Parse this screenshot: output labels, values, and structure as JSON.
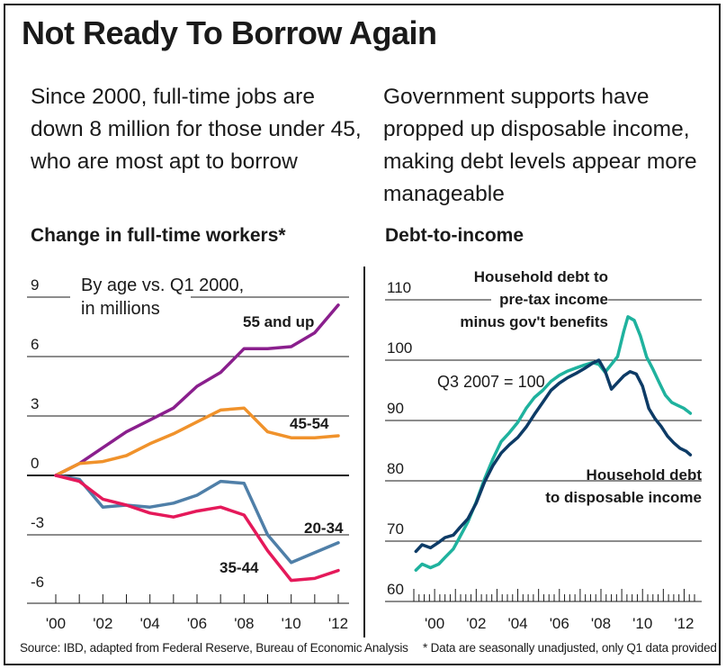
{
  "title": "Not Ready To Borrow Again",
  "intro_left": "Since 2000, full-time jobs are down 8 million for those under 45, who are most apt to borrow",
  "intro_right": "Government supports have propped up disposable income, making debt levels appear more manageable",
  "source": "Source: IBD, adapted from Federal Reserve, Bureau of Economic Analysis",
  "footnote": "* Data are seasonally unadjusted, only Q1 data provided",
  "colors": {
    "purple": "#8a1f8d",
    "orange": "#f0922b",
    "red": "#e5195a",
    "steel": "#4f7fa8",
    "teal": "#1fb29e",
    "navy": "#0d3b66"
  },
  "chart_data": [
    {
      "type": "line",
      "title": "Change in full-time workers*",
      "note_lines": [
        "By age vs. Q1 2000,",
        "in millions"
      ],
      "ylim": [
        -6,
        9
      ],
      "yticks": [
        9,
        6,
        3,
        0,
        -3,
        -6
      ],
      "x": [
        2000,
        2001,
        2002,
        2003,
        2004,
        2005,
        2006,
        2007,
        2008,
        2009,
        2010,
        2011,
        2012
      ],
      "xtick_labels": [
        "'00",
        "'02",
        "'04",
        "'06",
        "'08",
        "'10",
        "'12"
      ],
      "series": [
        {
          "name": "55 and up",
          "color_key": "purple",
          "values": [
            0,
            0.6,
            1.4,
            2.2,
            2.8,
            3.4,
            4.5,
            5.2,
            6.4,
            6.4,
            6.5,
            7.2,
            8.6
          ]
        },
        {
          "name": "45-54",
          "color_key": "orange",
          "values": [
            0,
            0.6,
            0.7,
            1.0,
            1.6,
            2.1,
            2.7,
            3.3,
            3.4,
            2.2,
            1.9,
            1.9,
            2.0
          ]
        },
        {
          "name": "20-34",
          "color_key": "steel",
          "values": [
            0,
            -0.2,
            -1.6,
            -1.5,
            -1.6,
            -1.4,
            -1.0,
            -0.3,
            -0.4,
            -3.0,
            -4.4,
            -3.9,
            -3.4
          ]
        },
        {
          "name": "35-44",
          "color_key": "red",
          "values": [
            0,
            -0.3,
            -1.2,
            -1.5,
            -1.9,
            -2.1,
            -1.8,
            -1.6,
            -2.0,
            -3.8,
            -5.3,
            -5.2,
            -4.8
          ]
        }
      ]
    },
    {
      "type": "line",
      "title": "Debt-to-income",
      "annotation": "Q3 2007 = 100",
      "ylim": [
        60,
        110
      ],
      "yticks": [
        110,
        100,
        90,
        80,
        70,
        60
      ],
      "xlim": [
        1999,
        2012.5
      ],
      "xtick_labels": [
        "'00",
        "'02",
        "'04",
        "'06",
        "'08",
        "'10",
        "'12"
      ],
      "series": [
        {
          "name": "Household debt to pre-tax income minus gov't benefits",
          "label_lines": [
            "Household debt to",
            "pre-tax income",
            "minus gov't benefits"
          ],
          "color_key": "teal",
          "x": [
            1999.1,
            1999.4,
            1999.8,
            2000.2,
            2000.5,
            2000.9,
            2001.2,
            2001.6,
            2002.0,
            2002.4,
            2002.8,
            2003.2,
            2003.6,
            2004.0,
            2004.4,
            2004.8,
            2005.2,
            2005.6,
            2006.0,
            2006.4,
            2006.8,
            2007.2,
            2007.6,
            2007.9,
            2008.2,
            2008.5,
            2008.8,
            2009.1,
            2009.3,
            2009.6,
            2009.9,
            2010.2,
            2010.5,
            2010.8,
            2011.1,
            2011.4,
            2011.7,
            2012.0,
            2012.3
          ],
          "values": [
            65.2,
            66.2,
            65.6,
            66.2,
            67.3,
            68.7,
            70.6,
            73.2,
            76.5,
            80.3,
            83.6,
            86.5,
            88.0,
            89.7,
            92.0,
            93.8,
            95.0,
            96.5,
            97.5,
            98.2,
            98.7,
            99.2,
            99.6,
            99.3,
            98.0,
            99.3,
            100.6,
            104.8,
            107.2,
            106.6,
            104.0,
            100.5,
            98.5,
            96.3,
            94.2,
            93.0,
            92.5,
            92.0,
            91.2
          ]
        },
        {
          "name": "Household debt to disposable income",
          "label_lines": [
            "Household debt",
            "to disposable income"
          ],
          "color_key": "navy",
          "x": [
            1999.1,
            1999.4,
            1999.8,
            2000.2,
            2000.5,
            2000.9,
            2001.2,
            2001.6,
            2002.0,
            2002.4,
            2002.8,
            2003.2,
            2003.6,
            2004.0,
            2004.4,
            2004.8,
            2005.2,
            2005.6,
            2006.0,
            2006.4,
            2006.8,
            2007.2,
            2007.6,
            2007.9,
            2008.2,
            2008.5,
            2008.8,
            2009.1,
            2009.4,
            2009.7,
            2010.0,
            2010.3,
            2010.6,
            2010.9,
            2011.2,
            2011.5,
            2011.8,
            2012.1,
            2012.3
          ],
          "values": [
            68.3,
            69.4,
            68.9,
            69.8,
            70.6,
            71.0,
            72.2,
            73.7,
            76.3,
            79.8,
            82.5,
            84.6,
            86.0,
            87.2,
            88.9,
            91.0,
            93.0,
            95.0,
            96.2,
            97.1,
            97.8,
            98.6,
            99.5,
            100.0,
            98.2,
            95.2,
            96.3,
            97.4,
            98.1,
            97.7,
            95.7,
            92.0,
            90.3,
            89.0,
            87.4,
            86.3,
            85.4,
            84.9,
            84.3
          ]
        }
      ]
    }
  ]
}
